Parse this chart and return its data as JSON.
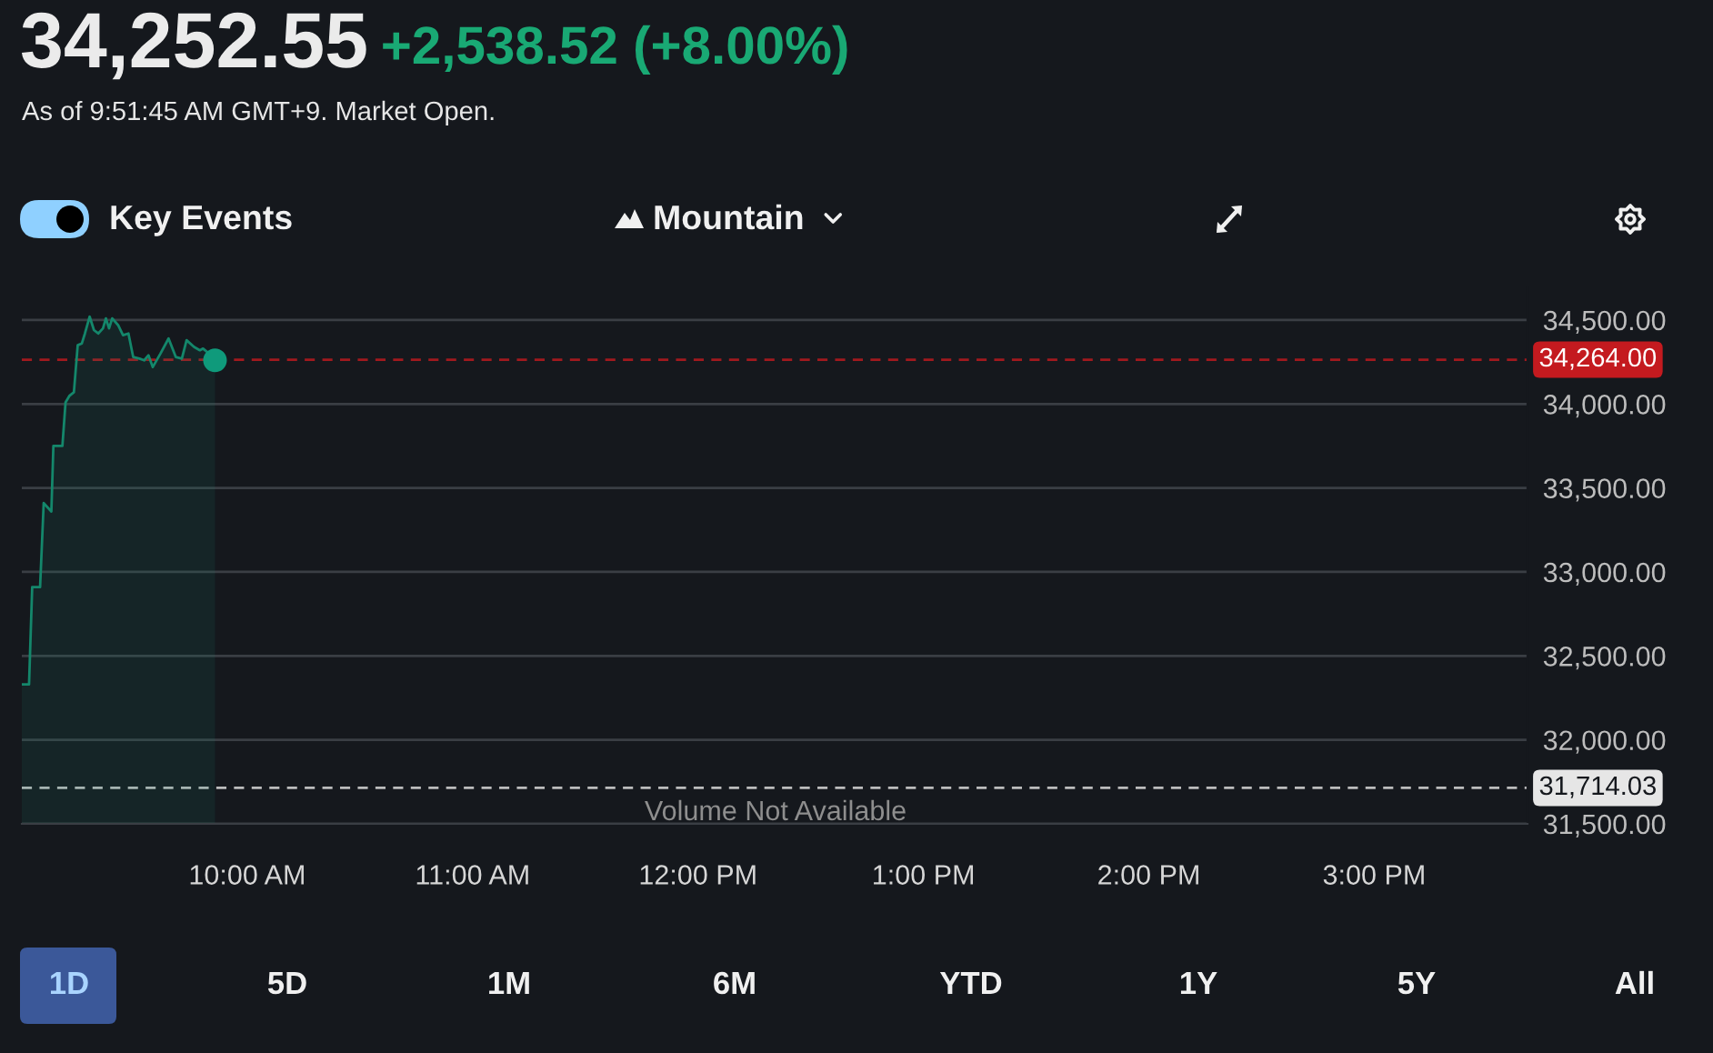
{
  "chart_data": {
    "type": "area",
    "title": "34,252.55",
    "subtitle": "+2,538.52 (+8.00%)",
    "annotations": [
      "As of 9:51:45 AM GMT+9. Market Open.",
      "Key Events",
      "Mountain",
      "Volume Not Available",
      "1D",
      "5D",
      "1M",
      "6M",
      "YTD",
      "1Y",
      "5Y",
      "All"
    ],
    "series": [
      {
        "color": "#14876b",
        "x": [
          9.0,
          9.032,
          9.046,
          9.081,
          9.097,
          9.131,
          9.14,
          9.18,
          9.194,
          9.212,
          9.231,
          9.248,
          9.266,
          9.28,
          9.301,
          9.32,
          9.339,
          9.36,
          9.373,
          9.387,
          9.401,
          9.427,
          9.449,
          9.473,
          9.494,
          9.522,
          9.543,
          9.562,
          9.581,
          9.615,
          9.651,
          9.683,
          9.71,
          9.731,
          9.764,
          9.79,
          9.804,
          9.831,
          9.857
        ],
        "values": [
          32330,
          32330,
          32910,
          32910,
          33410,
          33360,
          33750,
          33750,
          34010,
          34050,
          34070,
          34350,
          34360,
          34420,
          34520,
          34440,
          34420,
          34450,
          34510,
          34450,
          34510,
          34470,
          34410,
          34420,
          34280,
          34270,
          34260,
          34290,
          34220,
          34300,
          34390,
          34280,
          34270,
          34380,
          34340,
          34320,
          34330,
          34300,
          34260
        ]
      },
      {
        "type": "scatter",
        "color": "#0f9a7b",
        "x": [
          9.857
        ],
        "values": [
          34260
        ]
      }
    ],
    "xlim": [
      9,
      15.68
    ],
    "xticks": [
      {
        "value": 10,
        "label": "10:00 AM"
      },
      {
        "value": 11,
        "label": "11:00 AM"
      },
      {
        "value": 12,
        "label": "12:00 PM"
      },
      {
        "value": 13,
        "label": "1:00 PM"
      },
      {
        "value": 14,
        "label": "2:00 PM"
      },
      {
        "value": 15,
        "label": "3:00 PM"
      }
    ],
    "ylim": [
      31500,
      34700
    ],
    "yticks": [
      {
        "value": 31500,
        "label": "31,500.00"
      },
      {
        "value": 32000,
        "label": "32,000.00"
      },
      {
        "value": 32500,
        "label": "32,500.00"
      },
      {
        "value": 33000,
        "label": "33,000.00"
      },
      {
        "value": 33500,
        "label": "33,500.00"
      },
      {
        "value": 34000,
        "label": "34,000.00"
      },
      {
        "value": 34500,
        "label": "34,500.00"
      }
    ],
    "ref_lines": [
      {
        "axis": "y",
        "value": 34264,
        "label": "34,264.00",
        "color": "#c41a1f",
        "line_style": "dashed"
      },
      {
        "axis": "y",
        "value": 31714.03,
        "label": "31,714.03",
        "color": "#e6e6e6",
        "line_style": "dashed"
      }
    ],
    "grid": "y"
  }
}
